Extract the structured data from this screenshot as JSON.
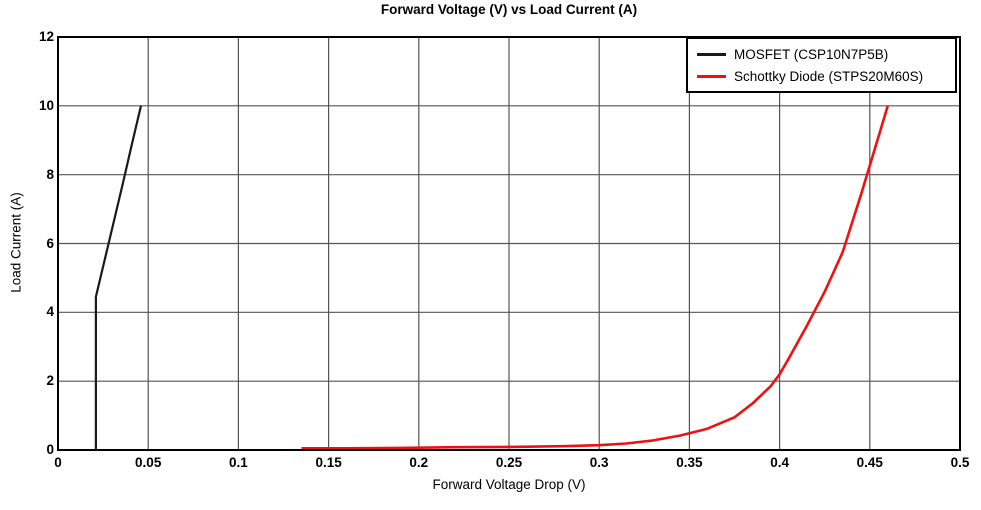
{
  "chart_data": {
    "type": "line",
    "title": "Forward Voltage (V) vs Load Current (A)",
    "xlabel": "Forward Voltage Drop (V)",
    "ylabel": "Load Current (A)",
    "xlim": [
      0,
      0.5
    ],
    "ylim": [
      0,
      12
    ],
    "grid": true,
    "legend_position": "top-right",
    "colors": {
      "grid": "#555555",
      "plot_border": "#000000",
      "text": "#000000",
      "background": "#ffffff"
    },
    "x_ticks": [
      {
        "v": 0,
        "label": "0"
      },
      {
        "v": 0.05,
        "label": "0.05"
      },
      {
        "v": 0.1,
        "label": "0.1"
      },
      {
        "v": 0.15,
        "label": "0.15"
      },
      {
        "v": 0.2,
        "label": "0.2"
      },
      {
        "v": 0.25,
        "label": "0.25"
      },
      {
        "v": 0.3,
        "label": "0.3"
      },
      {
        "v": 0.35,
        "label": "0.35"
      },
      {
        "v": 0.4,
        "label": "0.4"
      },
      {
        "v": 0.45,
        "label": "0.45"
      },
      {
        "v": 0.5,
        "label": "0.5"
      }
    ],
    "y_ticks": [
      {
        "v": 0,
        "label": "0"
      },
      {
        "v": 2,
        "label": "2"
      },
      {
        "v": 4,
        "label": "4"
      },
      {
        "v": 6,
        "label": "6"
      },
      {
        "v": 8,
        "label": "8"
      },
      {
        "v": 10,
        "label": "10"
      },
      {
        "v": 12,
        "label": "12"
      }
    ],
    "series": [
      {
        "name": "MOSFET (CSP10N7P5B)",
        "color": "#1a1a1a",
        "line_width": 2.2,
        "points": [
          [
            0.021,
            0
          ],
          [
            0.021,
            4.45
          ],
          [
            0.026,
            5.55
          ],
          [
            0.031,
            6.65
          ],
          [
            0.036,
            7.75
          ],
          [
            0.041,
            8.9
          ],
          [
            0.046,
            10
          ]
        ]
      },
      {
        "name": "Schottky Diode (STPS20M60S)",
        "color": "#ee1111",
        "line_width": 2.6,
        "points": [
          [
            0.135,
            0.05
          ],
          [
            0.16,
            0.05
          ],
          [
            0.19,
            0.06
          ],
          [
            0.22,
            0.08
          ],
          [
            0.25,
            0.09
          ],
          [
            0.28,
            0.11
          ],
          [
            0.3,
            0.14
          ],
          [
            0.315,
            0.19
          ],
          [
            0.33,
            0.28
          ],
          [
            0.345,
            0.42
          ],
          [
            0.36,
            0.62
          ],
          [
            0.375,
            0.95
          ],
          [
            0.385,
            1.35
          ],
          [
            0.395,
            1.85
          ],
          [
            0.4,
            2.2
          ],
          [
            0.405,
            2.65
          ],
          [
            0.415,
            3.6
          ],
          [
            0.425,
            4.6
          ],
          [
            0.435,
            5.75
          ],
          [
            0.445,
            7.4
          ],
          [
            0.4525,
            8.7
          ],
          [
            0.46,
            10
          ]
        ]
      }
    ]
  }
}
